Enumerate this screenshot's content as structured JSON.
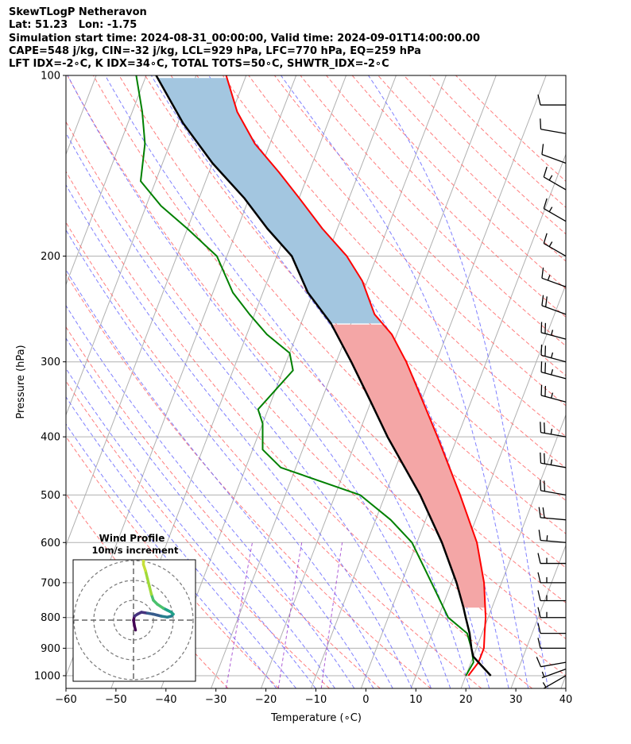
{
  "header": {
    "line1": "SkewTLogP Netheravon",
    "line2": "Lat: 51.23   Lon: -1.75",
    "line3": "Simulation start time: 2024-08-31_00:00:00, Valid time: 2024-09-01T14:00:00.00",
    "line4": "CAPE=548 j/kg, CIN=-32 j/kg, LCL=929 hPa, LFC=770 hPa, EQ=259 hPa",
    "line5": "LFT IDX=-2∘C, K IDX=34∘C, TOTAL TOTS=50∘C, SHWTR_IDX=-2∘C"
  },
  "chart_data": {
    "type": "line",
    "subtype": "skew-t log-p",
    "xlabel": "Temperature (∘C)",
    "ylabel": "Pressure (hPa)",
    "xlim": [
      -60,
      40
    ],
    "ylim": [
      1050,
      100
    ],
    "y_scale": "log",
    "x_ticks": [
      "−60",
      "−50",
      "−40",
      "−30",
      "−20",
      "−10",
      "0",
      "10",
      "20",
      "30",
      "40"
    ],
    "x_tick_values": [
      -60,
      -50,
      -40,
      -30,
      -20,
      -10,
      0,
      10,
      20,
      30,
      40
    ],
    "y_ticks": [
      "1000",
      "900",
      "800",
      "700",
      "600",
      "500",
      "400",
      "300",
      "200",
      "100"
    ],
    "y_tick_values": [
      1000,
      900,
      800,
      700,
      600,
      500,
      400,
      300,
      200,
      100
    ],
    "grid": true,
    "series": [
      {
        "role": "temperature",
        "color": "#ff0000",
        "points": [
          [
            1000,
            20.5
          ],
          [
            950,
            21.5
          ],
          [
            900,
            21.5
          ],
          [
            850,
            20.5
          ],
          [
            800,
            19.5
          ],
          [
            700,
            16.5
          ],
          [
            600,
            12
          ],
          [
            500,
            5
          ],
          [
            400,
            -4
          ],
          [
            330,
            -12
          ],
          [
            300,
            -16
          ],
          [
            270,
            -21
          ],
          [
            250,
            -26
          ],
          [
            220,
            -31
          ],
          [
            200,
            -36
          ],
          [
            180,
            -43
          ],
          [
            160,
            -50
          ],
          [
            145,
            -56
          ],
          [
            130,
            -63
          ],
          [
            115,
            -69
          ],
          [
            100,
            -74
          ]
        ]
      },
      {
        "role": "dewpoint",
        "color": "#008000",
        "points": [
          [
            1000,
            20
          ],
          [
            950,
            20.5
          ],
          [
            900,
            19
          ],
          [
            850,
            17
          ],
          [
            800,
            12
          ],
          [
            700,
            6
          ],
          [
            600,
            -1
          ],
          [
            550,
            -7
          ],
          [
            500,
            -15
          ],
          [
            450,
            -33
          ],
          [
            420,
            -38
          ],
          [
            380,
            -40
          ],
          [
            360,
            -42
          ],
          [
            310,
            -38
          ],
          [
            290,
            -40
          ],
          [
            270,
            -46
          ],
          [
            250,
            -51
          ],
          [
            230,
            -56
          ],
          [
            200,
            -62
          ],
          [
            180,
            -70
          ],
          [
            165,
            -77
          ],
          [
            150,
            -83
          ],
          [
            130,
            -85
          ],
          [
            115,
            -88
          ],
          [
            100,
            -92
          ]
        ]
      },
      {
        "role": "parcel",
        "color": "#000000",
        "points": [
          [
            1000,
            25
          ],
          [
            950,
            21.5
          ],
          [
            929,
            20
          ],
          [
            900,
            19
          ],
          [
            850,
            17.5
          ],
          [
            800,
            15.5
          ],
          [
            770,
            14.3
          ],
          [
            700,
            11
          ],
          [
            600,
            5
          ],
          [
            500,
            -3
          ],
          [
            400,
            -14
          ],
          [
            350,
            -20
          ],
          [
            300,
            -27
          ],
          [
            259,
            -34
          ],
          [
            230,
            -41
          ],
          [
            200,
            -47
          ],
          [
            180,
            -54
          ],
          [
            160,
            -61
          ],
          [
            140,
            -70
          ],
          [
            120,
            -79
          ],
          [
            100,
            -88
          ]
        ]
      }
    ],
    "cape_fill_color": "#f4a6a6",
    "cin_fill_color": "#a3c6e0",
    "reference_lines": {
      "isotherms_color": "#b0b0b0",
      "dry_adiabats_color": "#ff6666",
      "moist_adiabats_color": "#6a6aff",
      "mixing_ratio_color": "#9933cc"
    },
    "wind_barbs": {
      "color": "#000000",
      "levels": [
        {
          "p": 1000,
          "speed_kt": 5,
          "dir": 240
        },
        {
          "p": 975,
          "speed_kt": 5,
          "dir": 250
        },
        {
          "p": 950,
          "speed_kt": 10,
          "dir": 260
        },
        {
          "p": 900,
          "speed_kt": 10,
          "dir": 270
        },
        {
          "p": 850,
          "speed_kt": 10,
          "dir": 270
        },
        {
          "p": 800,
          "speed_kt": 15,
          "dir": 270
        },
        {
          "p": 750,
          "speed_kt": 15,
          "dir": 270
        },
        {
          "p": 700,
          "speed_kt": 15,
          "dir": 270
        },
        {
          "p": 650,
          "speed_kt": 15,
          "dir": 270
        },
        {
          "p": 600,
          "speed_kt": 15,
          "dir": 275
        },
        {
          "p": 550,
          "speed_kt": 20,
          "dir": 275
        },
        {
          "p": 500,
          "speed_kt": 20,
          "dir": 280
        },
        {
          "p": 450,
          "speed_kt": 25,
          "dir": 280
        },
        {
          "p": 400,
          "speed_kt": 25,
          "dir": 280
        },
        {
          "p": 350,
          "speed_kt": 25,
          "dir": 285
        },
        {
          "p": 320,
          "speed_kt": 25,
          "dir": 285
        },
        {
          "p": 300,
          "speed_kt": 25,
          "dir": 285
        },
        {
          "p": 275,
          "speed_kt": 25,
          "dir": 285
        },
        {
          "p": 250,
          "speed_kt": 20,
          "dir": 290
        },
        {
          "p": 225,
          "speed_kt": 15,
          "dir": 290
        },
        {
          "p": 200,
          "speed_kt": 15,
          "dir": 300
        },
        {
          "p": 175,
          "speed_kt": 15,
          "dir": 300
        },
        {
          "p": 155,
          "speed_kt": 15,
          "dir": 300
        },
        {
          "p": 140,
          "speed_kt": 10,
          "dir": 290
        },
        {
          "p": 125,
          "speed_kt": 10,
          "dir": 280
        },
        {
          "p": 112,
          "speed_kt": 10,
          "dir": 270
        }
      ]
    },
    "wind_profile_inset": {
      "title": "Wind Profile",
      "subtitle": "10m/s increment",
      "rings": 3,
      "hodograph": [
        [
          1,
          -5
        ],
        [
          0.5,
          -3
        ],
        [
          0,
          0
        ],
        [
          0.5,
          2
        ],
        [
          2,
          3
        ],
        [
          4,
          4
        ],
        [
          7,
          3.5
        ],
        [
          10,
          3
        ],
        [
          12,
          2.5
        ],
        [
          14,
          2
        ],
        [
          17,
          1.5
        ],
        [
          19,
          2
        ],
        [
          20,
          3
        ],
        [
          19,
          4
        ],
        [
          17,
          5
        ],
        [
          15,
          6
        ],
        [
          12,
          8
        ],
        [
          10,
          10
        ],
        [
          9,
          13
        ],
        [
          8,
          17
        ],
        [
          7,
          21
        ],
        [
          6,
          25
        ],
        [
          5,
          28
        ],
        [
          5,
          31
        ],
        [
          4,
          34
        ]
      ]
    }
  }
}
